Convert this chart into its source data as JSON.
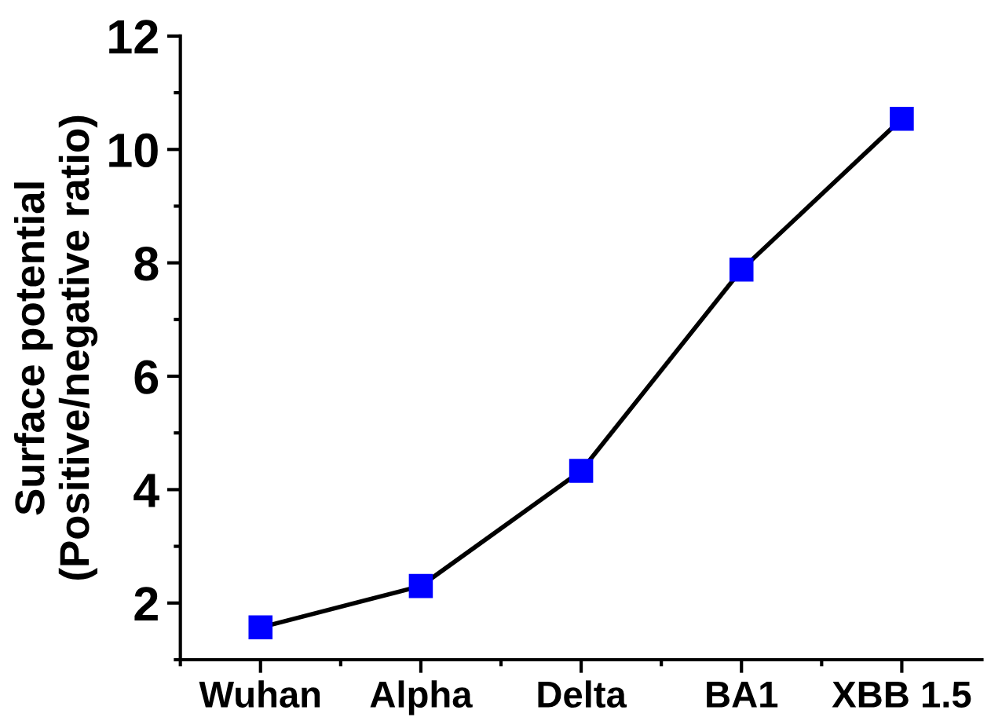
{
  "chart_data": {
    "type": "line",
    "ylabel": "Surface potential\n(Positive/negative ratio)",
    "categories": [
      "Wuhan",
      "Alpha",
      "Delta",
      "BA1",
      "XBB 1.5"
    ],
    "series": [
      {
        "color": "#0000ff",
        "values": [
          1.57,
          2.3,
          4.33,
          7.88,
          10.54
        ]
      }
    ],
    "ylim": [
      1,
      12
    ],
    "yticks": [
      2,
      4,
      6,
      8,
      10,
      12
    ],
    "grid": false,
    "marker": "square",
    "line_style": "solid",
    "legend": false
  }
}
